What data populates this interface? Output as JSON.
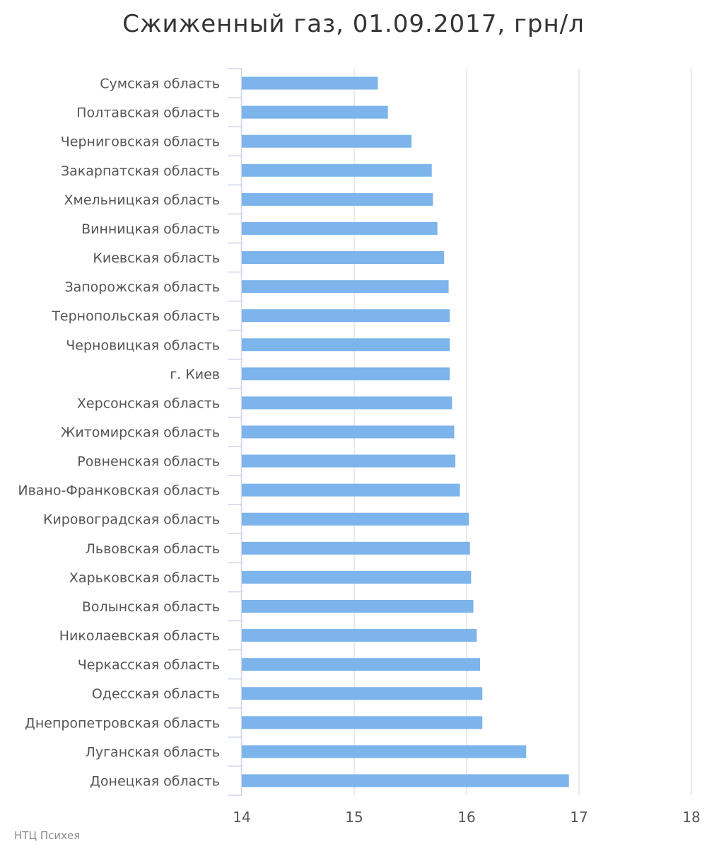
{
  "chart_data": {
    "type": "bar",
    "orientation": "horizontal",
    "title": "Сжиженный газ, 01.09.2017, грн/л",
    "categories": [
      "Сумская область",
      "Полтавская область",
      "Черниговская область",
      "Закарпатская область",
      "Хмельницкая область",
      "Винницкая область",
      "Киевская область",
      "Запорожская область",
      "Тернопольская область",
      "Черновицкая область",
      "г. Киев",
      "Херсонская область",
      "Житомирская область",
      "Ровненская область",
      "Ивано-Франковская область",
      "Кировоградская область",
      "Львовская область",
      "Харьковская область",
      "Волынская область",
      "Николаевская область",
      "Черкасская область",
      "Одесская область",
      "Днепропетровская область",
      "Луганская область",
      "Донецкая область"
    ],
    "values": [
      15.21,
      15.3,
      15.51,
      15.69,
      15.7,
      15.74,
      15.8,
      15.84,
      15.85,
      15.85,
      15.85,
      15.87,
      15.89,
      15.9,
      15.94,
      16.02,
      16.03,
      16.04,
      16.06,
      16.09,
      16.12,
      16.14,
      16.14,
      16.53,
      16.91
    ],
    "xlim": [
      14,
      18
    ],
    "x_ticks": [
      "14",
      "15",
      "16",
      "17",
      "18"
    ],
    "xlabel": "",
    "ylabel": "",
    "grid": "vertical",
    "bar_color": "#7cb4eb"
  },
  "credit": "НТЦ Психея"
}
